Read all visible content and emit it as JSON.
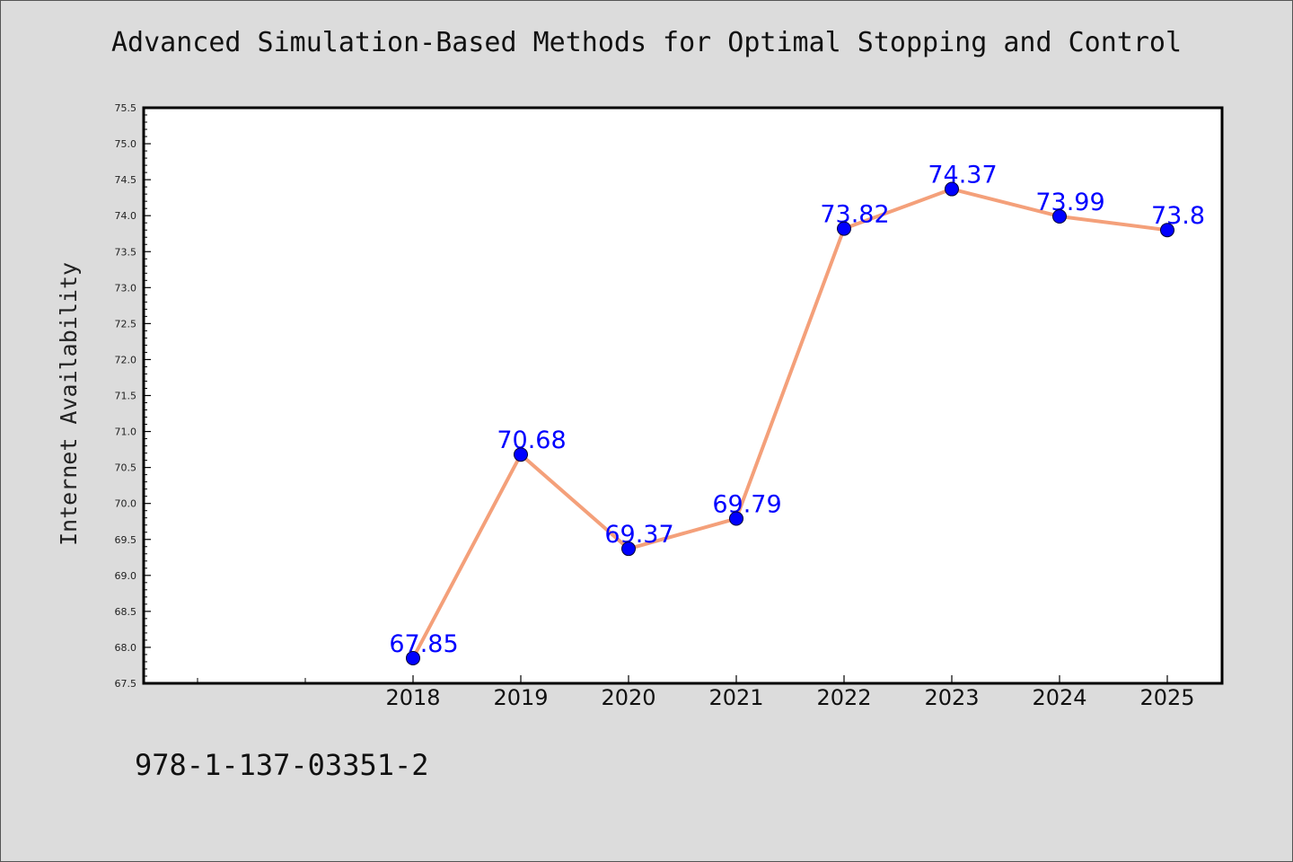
{
  "title": "Advanced Simulation-Based Methods for Optimal Stopping and Control",
  "isbn": "978-1-137-03351-2",
  "chart_data": {
    "type": "line",
    "title": "Advanced Simulation-Based Methods for Optimal Stopping and Control",
    "xlabel": "",
    "ylabel": "Internet Availability",
    "categories": [
      "2018",
      "2019",
      "2020",
      "2021",
      "2022",
      "2023",
      "2024",
      "2025"
    ],
    "series": [
      {
        "values": [
          67.85,
          70.68,
          69.37,
          69.79,
          73.82,
          74.37,
          73.99,
          73.8
        ],
        "labels": [
          "67.85",
          "70.68",
          "69.37",
          "69.79",
          "73.82",
          "74.37",
          "73.99",
          "73.8"
        ]
      }
    ],
    "ylim": [
      67.5,
      75.5
    ],
    "yticks": [
      "67.5",
      "68.0",
      "68.5",
      "69.0",
      "69.5",
      "70.0",
      "70.5",
      "71.0",
      "71.5",
      "72.0",
      "72.5",
      "73.0",
      "73.5",
      "74.0",
      "74.5",
      "75.0",
      "75.5"
    ],
    "grid": false,
    "line_color": "#f4a07a",
    "marker_color": "#0000ff",
    "label_color": "#0000ff",
    "background": "#dcdcdc",
    "plot_background": "#ffffff"
  }
}
